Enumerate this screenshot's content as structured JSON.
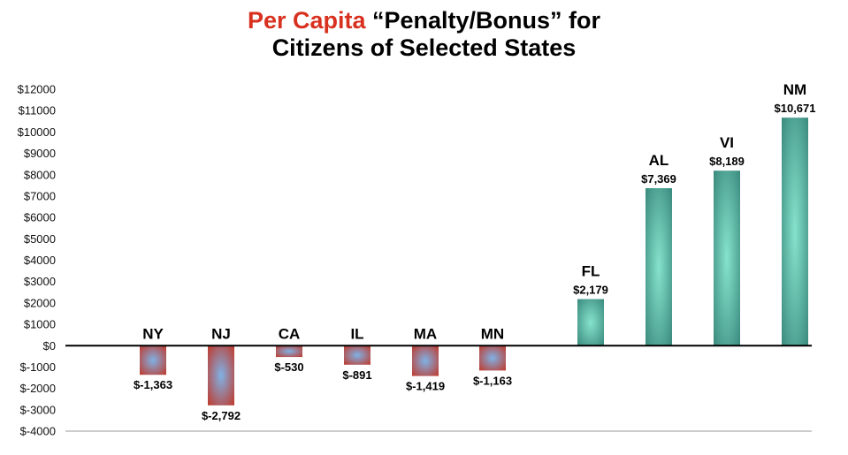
{
  "title": {
    "highlight": "Per Capita",
    "rest": " “Penalty/Bonus” for",
    "line2": "Citizens of Selected States"
  },
  "colors": {
    "title_highlight": "#d8311f",
    "negative_bar_edge": "#c0392b",
    "negative_bar_center": "#7fb2e6",
    "positive_bar_edge": "#3a8a7e",
    "positive_bar_center": "#86e3cc"
  },
  "chart_data": {
    "type": "bar",
    "title": "Per Capita “Penalty/Bonus” for Citizens of Selected States",
    "categories": [
      "NY",
      "NJ",
      "CA",
      "IL",
      "MA",
      "MN",
      "FL",
      "AL",
      "VI",
      "NM"
    ],
    "values": [
      -1363,
      -2792,
      -530,
      -891,
      -1419,
      -1163,
      2179,
      7369,
      8189,
      10671
    ],
    "value_labels": [
      "$-1,363",
      "$-2,792",
      "$-530",
      "$-891",
      "$-1,419",
      "$-1,163",
      "$2,179",
      "$7,369",
      "$8,189",
      "$10,671"
    ],
    "ylim": [
      -4000,
      12000
    ],
    "yticks": [
      12000,
      11000,
      10000,
      9000,
      8000,
      7000,
      6000,
      5000,
      4000,
      3000,
      2000,
      1000,
      0,
      -1000,
      -2000,
      -3000,
      -4000
    ],
    "ytick_labels": [
      "$12000",
      "$11000",
      "$10000",
      "$9000",
      "$8000",
      "$7000",
      "$6000",
      "$5000",
      "$4000",
      "$3000",
      "$2000",
      "$1000",
      "$0",
      "$-1000",
      "$-2000",
      "$-3000",
      "$-4000"
    ],
    "grid": false,
    "legend": "none"
  }
}
